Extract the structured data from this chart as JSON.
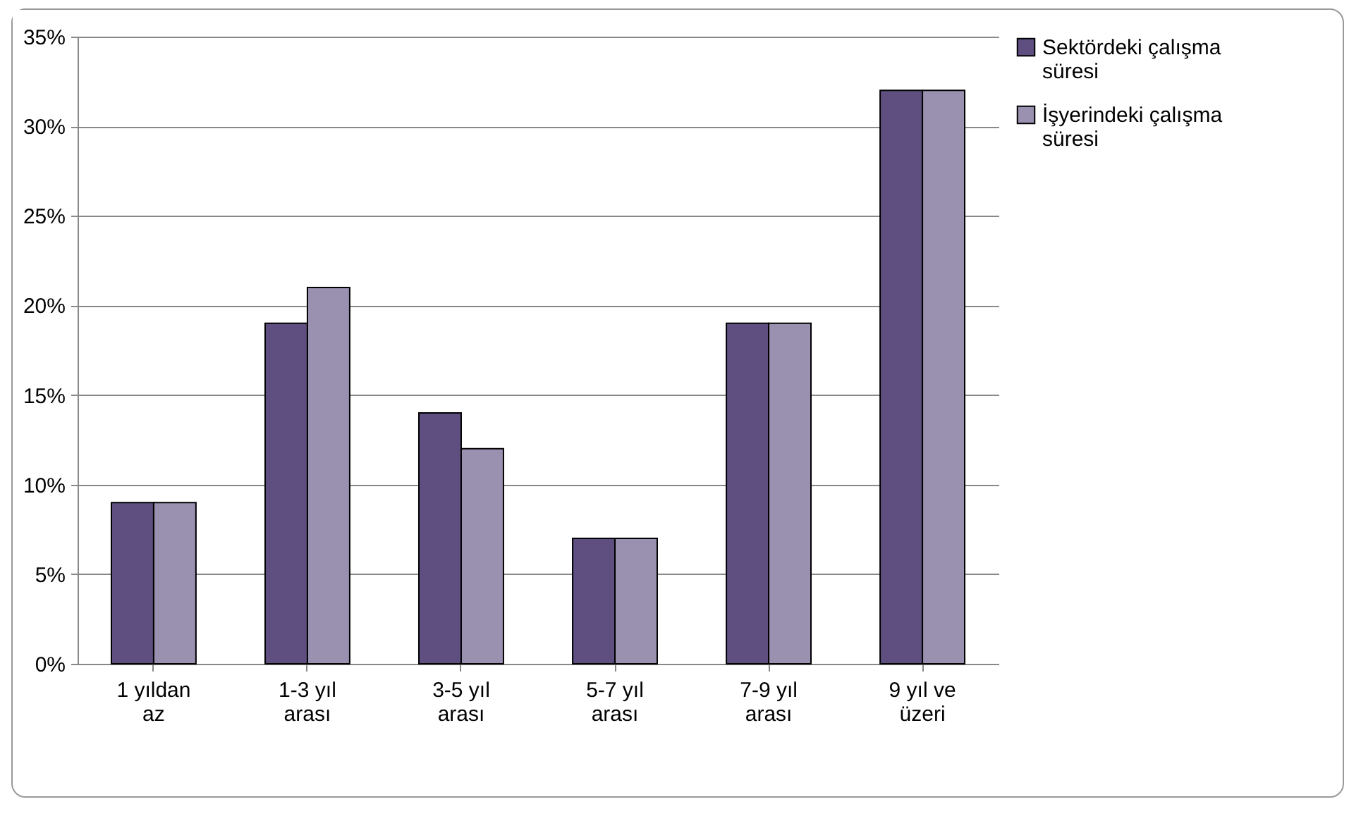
{
  "chart_data": {
    "type": "bar",
    "categories": [
      "1 yıldan az",
      "1-3 yıl arası",
      "3-5 yıl arası",
      "5-7 yıl arası",
      "7-9 yıl arası",
      "9 yıl ve üzeri"
    ],
    "series": [
      {
        "name": "Sektördeki çalışma süresi",
        "color": "#5e4f80",
        "values": [
          9,
          19,
          14,
          7,
          19,
          32
        ]
      },
      {
        "name": "İşyerindeki çalışma süresi",
        "color": "#9a90b0",
        "values": [
          9,
          21,
          12,
          7,
          19,
          32
        ]
      }
    ],
    "ylim": [
      0,
      35
    ],
    "yticks": [
      {
        "value": 0,
        "label": "0%"
      },
      {
        "value": 5,
        "label": "5%"
      },
      {
        "value": 10,
        "label": "10%"
      },
      {
        "value": 15,
        "label": "15%"
      },
      {
        "value": 20,
        "label": "20%"
      },
      {
        "value": 25,
        "label": "25%"
      },
      {
        "value": 30,
        "label": "30%"
      },
      {
        "value": 35,
        "label": "35%"
      }
    ],
    "grid": "y",
    "legend": "right"
  }
}
